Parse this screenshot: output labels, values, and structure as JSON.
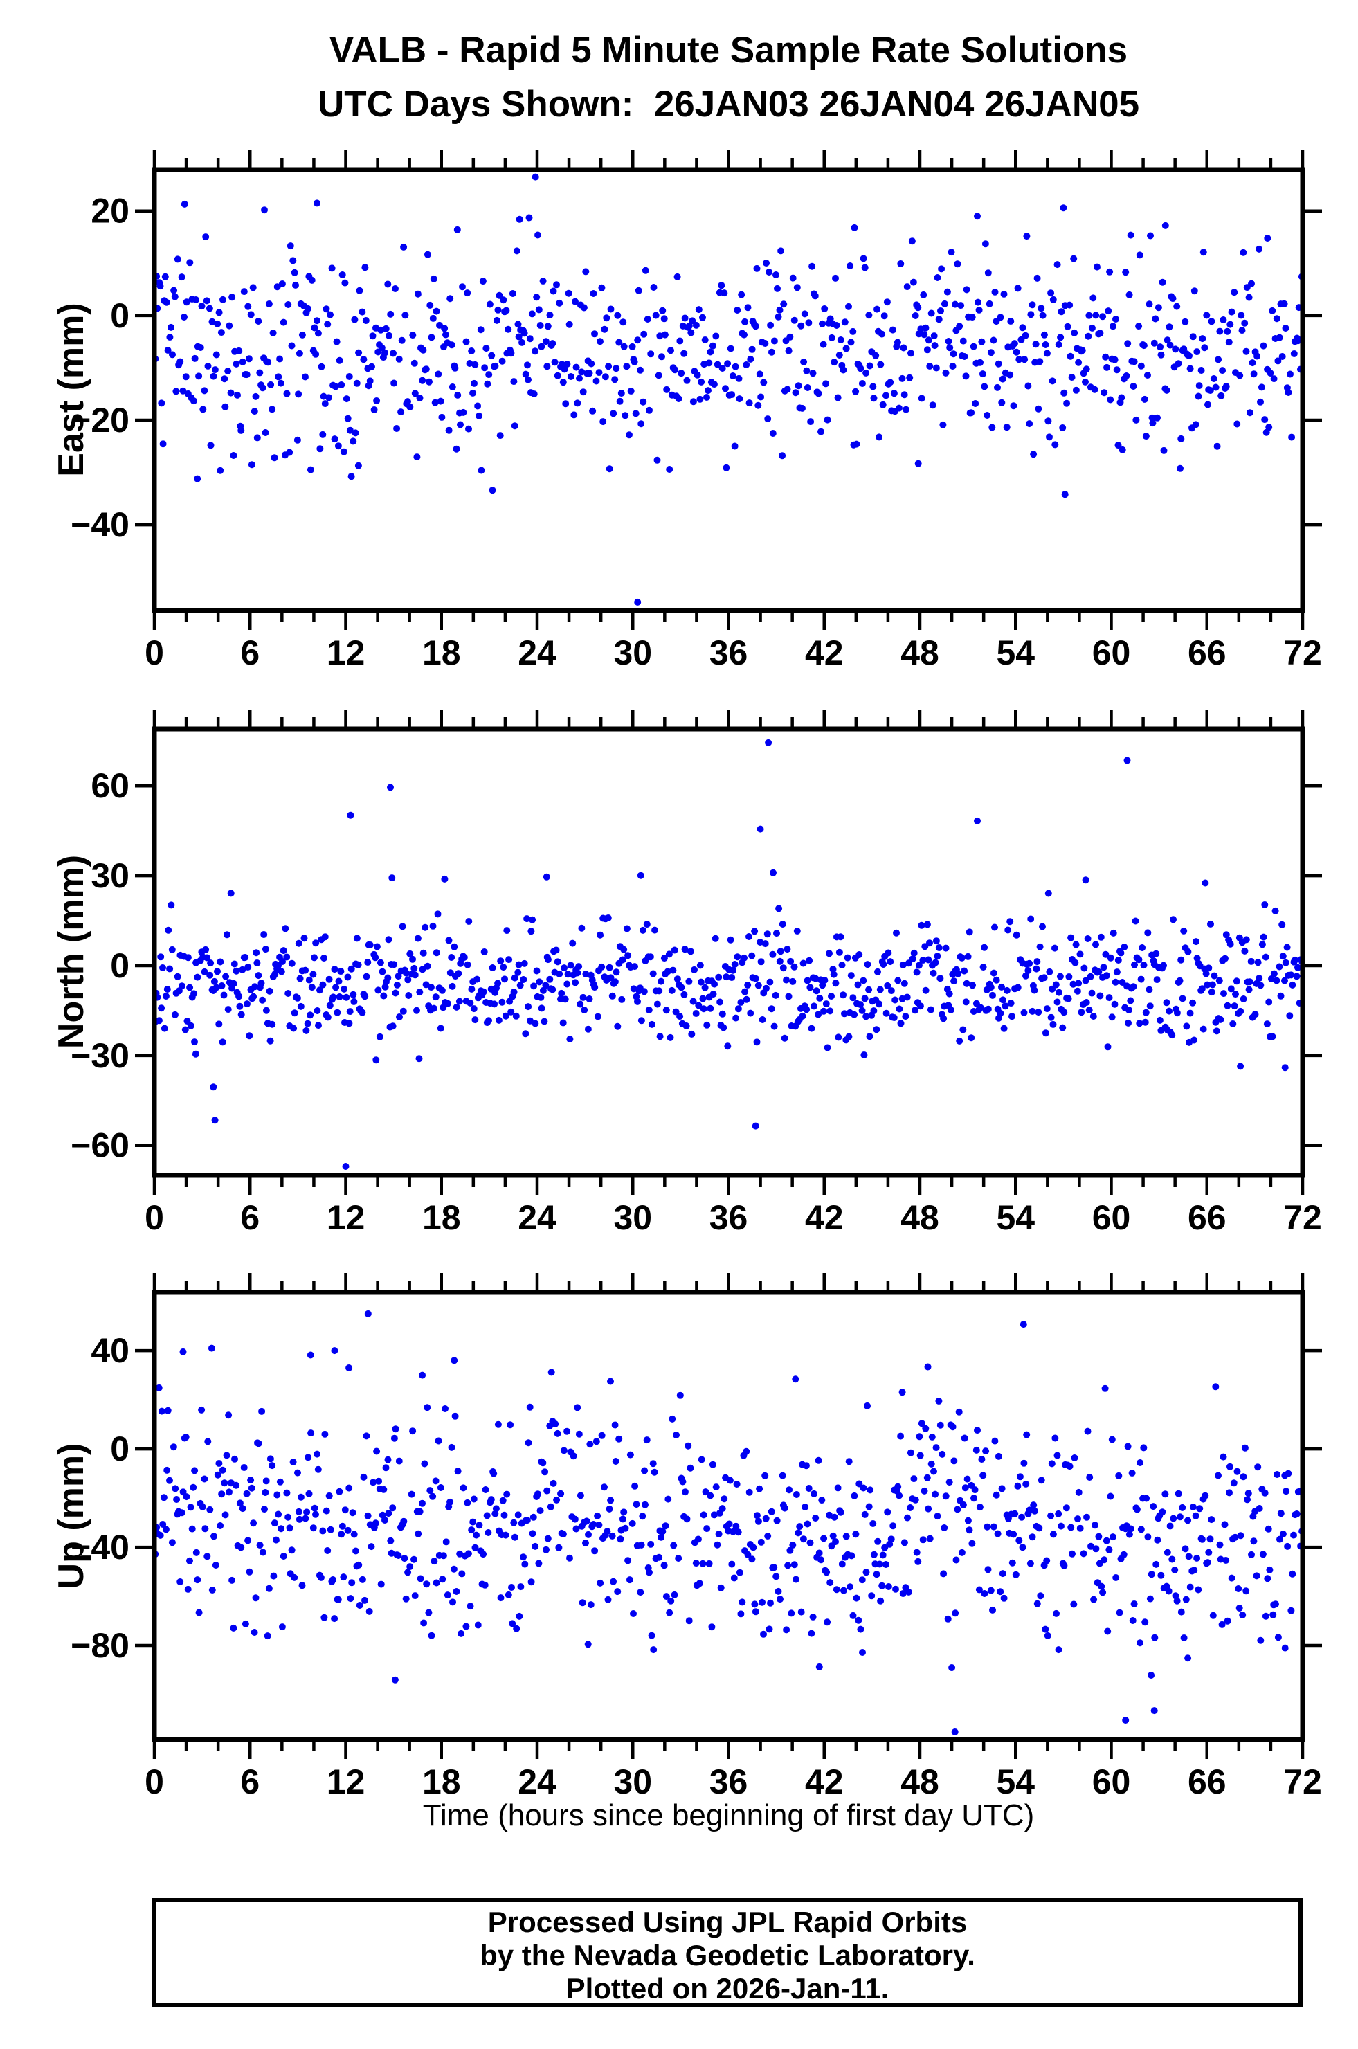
{
  "header": {
    "title_line1": "VALB - Rapid 5 Minute Sample Rate Solutions",
    "title_line2": "UTC Days Shown:  26JAN03 26JAN04 26JAN05"
  },
  "chart_data": {
    "type": "scatter",
    "title": "VALB - Rapid 5 Minute Sample Rate Solutions",
    "subtitle": "UTC Days Shown:  26JAN03 26JAN04 26JAN05",
    "station": "VALB",
    "utc_days_shown": [
      "26JAN03",
      "26JAN04",
      "26JAN05"
    ],
    "xlabel": "Time (hours since beginning of first day UTC)",
    "x_axis": {
      "min": 0,
      "max": 72,
      "major_tick_interval": 6,
      "minor_tick_interval": 2,
      "tick_labels": [
        "0",
        "6",
        "12",
        "18",
        "24",
        "30",
        "36",
        "42",
        "48",
        "54",
        "60",
        "66",
        "72"
      ]
    },
    "marker": {
      "shape": "circle",
      "color": "#0000f2",
      "radius_px": 5
    },
    "layout": {
      "grid": false,
      "frame_color": "#000000",
      "background": "#ffffff",
      "legend": "none",
      "sample_interval_hours": 0.0833
    },
    "panels": [
      {
        "name": "east",
        "ylabel": "East (mm)",
        "ylim": [
          -56.4,
          27.9
        ],
        "yticks": [
          20,
          0,
          -20,
          -40
        ],
        "ytick_labels": [
          "20",
          "0",
          "−20",
          "−40"
        ],
        "seed": 101,
        "n_slots": 864,
        "keep_probability": 0.955,
        "distribution": {
          "mean": -7.5,
          "std": 9.5,
          "clip": [
            -31,
            16.5
          ],
          "day_start_settle": {
            "amplitude": 6,
            "tau_hours": 1.5
          }
        },
        "outliers": [
          [
            23.9,
            26.5
          ],
          [
            1.9,
            21.3
          ],
          [
            10.2,
            21.5
          ],
          [
            6.9,
            20.2
          ],
          [
            57.0,
            20.6
          ],
          [
            51.6,
            19.0
          ],
          [
            23.5,
            18.7
          ],
          [
            22.9,
            18.4
          ],
          [
            63.4,
            17.2
          ],
          [
            19.0,
            16.4
          ],
          [
            43.9,
            16.8
          ],
          [
            69.8,
            14.8
          ],
          [
            30.3,
            -54.8
          ],
          [
            57.1,
            -34.2
          ],
          [
            21.2,
            -33.4
          ],
          [
            2.7,
            -31.2
          ],
          [
            20.5,
            -29.6
          ],
          [
            12.8,
            -28.7
          ],
          [
            47.9,
            -28.3
          ]
        ]
      },
      {
        "name": "north",
        "ylabel": "North (mm)",
        "ylim": [
          -70,
          79
        ],
        "yticks": [
          60,
          30,
          0,
          -30,
          -60
        ],
        "ytick_labels": [
          "60",
          "30",
          "0",
          "−30",
          "−60"
        ],
        "seed": 202,
        "n_slots": 864,
        "keep_probability": 0.955,
        "distribution": {
          "mean": -6,
          "std": 10,
          "clip": [
            -27.5,
            26
          ],
          "day_start_settle": {
            "amplitude": 5,
            "tau_hours": 1.2
          }
        },
        "outliers": [
          [
            38.5,
            74.4
          ],
          [
            61.0,
            68.5
          ],
          [
            14.8,
            59.5
          ],
          [
            12.3,
            50.2
          ],
          [
            51.6,
            48.3
          ],
          [
            38.0,
            45.6
          ],
          [
            38.8,
            31.0
          ],
          [
            30.5,
            30.1
          ],
          [
            24.6,
            29.6
          ],
          [
            14.9,
            29.3
          ],
          [
            18.2,
            28.9
          ],
          [
            58.4,
            28.6
          ],
          [
            65.9,
            27.6
          ],
          [
            12.0,
            -67.0
          ],
          [
            37.7,
            -53.5
          ],
          [
            3.8,
            -51.6
          ],
          [
            3.7,
            -40.5
          ],
          [
            70.9,
            -34.0
          ],
          [
            68.1,
            -33.6
          ],
          [
            13.9,
            -31.5
          ],
          [
            16.6,
            -31.0
          ],
          [
            44.5,
            -29.8
          ],
          [
            2.6,
            -29.5
          ]
        ]
      },
      {
        "name": "up",
        "ylabel": "Up (mm)",
        "ylim": [
          -118.3,
          63.7
        ],
        "yticks": [
          40,
          0,
          -40,
          -80
        ],
        "ytick_labels": [
          "40",
          "0",
          "−40",
          "−80"
        ],
        "seed": 303,
        "n_slots": 864,
        "keep_probability": 0.955,
        "distribution": {
          "mean": -35,
          "std": 23,
          "clip": [
            -78,
            26
          ],
          "day_start_settle": {
            "amplitude": 26,
            "tau_hours": 3.0
          }
        },
        "outliers": [
          [
            13.4,
            55.0
          ],
          [
            54.5,
            50.7
          ],
          [
            3.6,
            41.0
          ],
          [
            11.3,
            40.0
          ],
          [
            1.8,
            39.5
          ],
          [
            9.8,
            38.2
          ],
          [
            18.8,
            36.0
          ],
          [
            48.5,
            33.4
          ],
          [
            12.2,
            33.0
          ],
          [
            24.9,
            31.2
          ],
          [
            16.8,
            30.0
          ],
          [
            40.2,
            28.4
          ],
          [
            28.6,
            27.5
          ],
          [
            50.2,
            -115.2
          ],
          [
            60.9,
            -110.4
          ],
          [
            62.7,
            -106.5
          ],
          [
            15.1,
            -94.0
          ],
          [
            62.5,
            -92.1
          ],
          [
            41.7,
            -88.7
          ],
          [
            50.0,
            -89.0
          ],
          [
            64.8,
            -85.1
          ],
          [
            44.4,
            -82.8
          ],
          [
            31.3,
            -81.7
          ],
          [
            56.7,
            -81.7
          ],
          [
            70.9,
            -81.0
          ],
          [
            61.8,
            -78.9
          ],
          [
            27.2,
            -79.5
          ]
        ]
      }
    ]
  },
  "footer": {
    "lines": [
      "Processed Using JPL Rapid Orbits",
      "by the Nevada Geodetic Laboratory.",
      "Plotted on 2026-Jan-11."
    ]
  }
}
